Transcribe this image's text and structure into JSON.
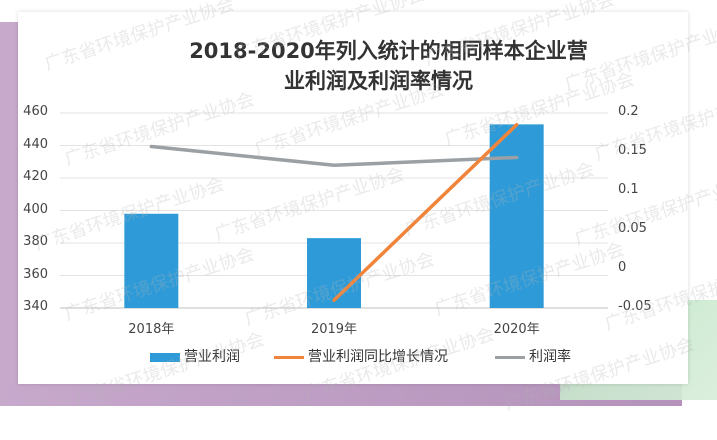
{
  "chart_data": {
    "type": "bar+line",
    "title_line1": "2018-2020年列入统计的相同样本企业营",
    "title_line2": "业利润及利润率情况",
    "categories": [
      "2018年",
      "2019年",
      "2020年"
    ],
    "left_axis": {
      "min": 340,
      "max": 460,
      "ticks": [
        "340",
        "360",
        "380",
        "400",
        "420",
        "440",
        "460"
      ]
    },
    "right_axis": {
      "min": -0.05,
      "max": 0.2,
      "ticks": [
        "-0.05",
        "0",
        "0.05",
        "0.1",
        "0.15",
        "0.2"
      ]
    },
    "series": [
      {
        "name": "营业利润",
        "type": "bar",
        "axis": "left",
        "color": "#2e9bd8",
        "values": [
          398,
          383,
          453
        ]
      },
      {
        "name": "营业利润同比增长情况",
        "type": "line",
        "axis": "right",
        "color": "#f0843a",
        "values": [
          null,
          -0.04,
          0.185
        ]
      },
      {
        "name": "利润率",
        "type": "line",
        "axis": "right",
        "color": "#9aa0a3",
        "values": [
          0.157,
          0.133,
          0.143
        ]
      }
    ],
    "legend_position": "bottom",
    "grid": "horizontal"
  },
  "watermark_text": "广东省环境保护产业协会"
}
